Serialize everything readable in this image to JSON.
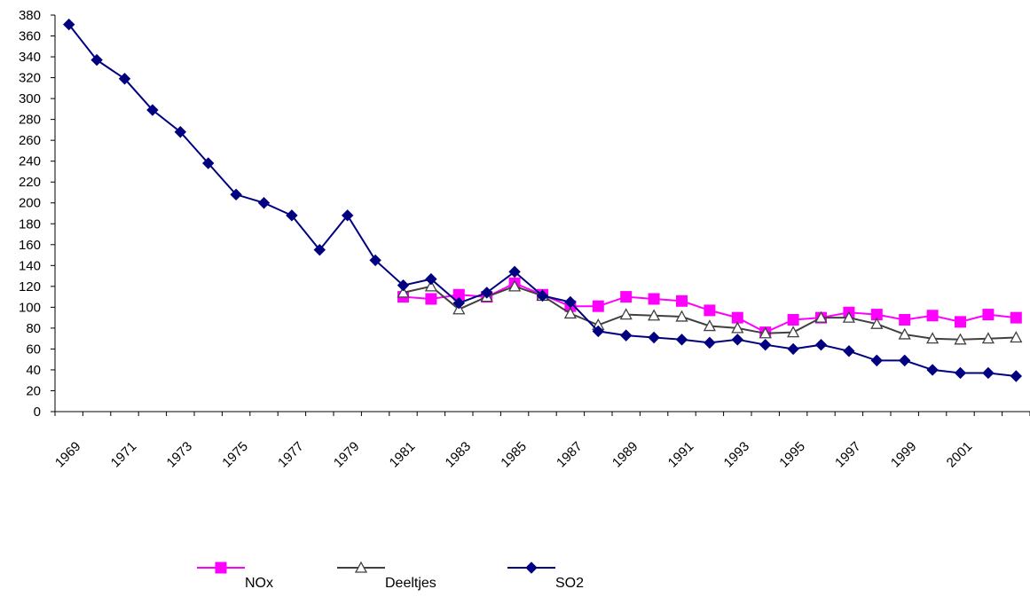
{
  "chart_data": {
    "type": "line",
    "title": "",
    "xlabel": "",
    "ylabel": "",
    "ylim": [
      0,
      380
    ],
    "yticks": [
      0,
      20,
      40,
      60,
      80,
      100,
      120,
      140,
      160,
      180,
      200,
      220,
      240,
      260,
      280,
      300,
      320,
      340,
      360,
      380
    ],
    "x": [
      1969,
      1970,
      1971,
      1972,
      1973,
      1974,
      1975,
      1976,
      1977,
      1978,
      1979,
      1980,
      1981,
      1982,
      1983,
      1984,
      1985,
      1986,
      1987,
      1988,
      1989,
      1990,
      1991,
      1992,
      1993,
      1994,
      1995,
      1996,
      1997,
      1998,
      1999,
      2000,
      2001,
      2002,
      2003
    ],
    "xtick_labels": [
      "1969",
      "1971",
      "1973",
      "1975",
      "1977",
      "1979",
      "1981",
      "1983",
      "1985",
      "1987",
      "1989",
      "1991",
      "1993",
      "1995",
      "1997",
      "1999",
      "2001"
    ],
    "grid": false,
    "legend_position": "bottom",
    "series": [
      {
        "name": "NOx",
        "color": "#FF00FF",
        "marker": "square",
        "values": [
          null,
          null,
          null,
          null,
          null,
          null,
          null,
          null,
          null,
          null,
          null,
          null,
          110,
          108,
          112,
          110,
          123,
          112,
          101,
          101,
          110,
          108,
          106,
          97,
          90,
          76,
          88,
          90,
          95,
          93,
          88,
          92,
          86,
          93,
          90
        ]
      },
      {
        "name": "Deeltjes",
        "color": "#404040",
        "marker": "triangle-open",
        "values": [
          null,
          null,
          null,
          null,
          null,
          null,
          null,
          null,
          null,
          null,
          null,
          null,
          114,
          120,
          98,
          110,
          120,
          111,
          94,
          83,
          93,
          92,
          91,
          82,
          80,
          75,
          76,
          90,
          90,
          84,
          74,
          70,
          69,
          70,
          71
        ]
      },
      {
        "name": "SO2",
        "color": "#000080",
        "marker": "diamond",
        "values": [
          371,
          337,
          319,
          289,
          268,
          238,
          208,
          200,
          188,
          155,
          188,
          145,
          121,
          127,
          104,
          114,
          134,
          111,
          105,
          77,
          73,
          71,
          69,
          66,
          69,
          64,
          60,
          64,
          58,
          49,
          49,
          40,
          37,
          37,
          34
        ]
      }
    ]
  }
}
